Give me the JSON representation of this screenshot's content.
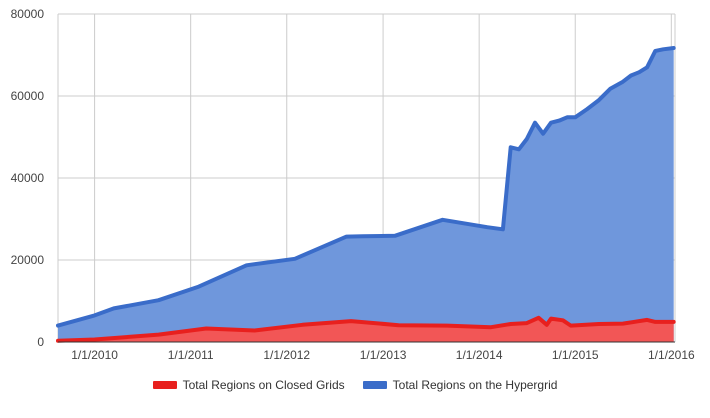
{
  "chart_data": {
    "type": "area",
    "x_ticks": [
      "1/1/2010",
      "1/1/2011",
      "1/1/2012",
      "1/1/2013",
      "1/1/2014",
      "1/1/2015",
      "1/1/2016"
    ],
    "y_ticks": [
      "0",
      "20000",
      "40000",
      "60000",
      "80000"
    ],
    "ylim": [
      0,
      80000
    ],
    "xlim": [
      "2009-08-15",
      "2016-01-15"
    ],
    "grid": true,
    "legend_position": "bottom",
    "series": [
      {
        "name": "Total Regions on the Hypergrid",
        "color": "#3a6cc9",
        "fill": "#6f97dc",
        "points": [
          {
            "x": "2009-08-15",
            "y": 4000
          },
          {
            "x": "2010-01-01",
            "y": 6500
          },
          {
            "x": "2010-03-15",
            "y": 8200
          },
          {
            "x": "2010-09-01",
            "y": 10200
          },
          {
            "x": "2011-02-01",
            "y": 13500
          },
          {
            "x": "2011-08-01",
            "y": 18700
          },
          {
            "x": "2012-02-01",
            "y": 20300
          },
          {
            "x": "2012-08-15",
            "y": 25700
          },
          {
            "x": "2012-10-15",
            "y": 25800
          },
          {
            "x": "2013-02-15",
            "y": 25900
          },
          {
            "x": "2013-08-15",
            "y": 29800
          },
          {
            "x": "2014-02-01",
            "y": 28000
          },
          {
            "x": "2014-04-01",
            "y": 27500
          },
          {
            "x": "2014-05-01",
            "y": 47500
          },
          {
            "x": "2014-06-01",
            "y": 47000
          },
          {
            "x": "2014-07-01",
            "y": 49500
          },
          {
            "x": "2014-08-01",
            "y": 53500
          },
          {
            "x": "2014-09-01",
            "y": 50800
          },
          {
            "x": "2014-10-01",
            "y": 53500
          },
          {
            "x": "2014-11-01",
            "y": 54000
          },
          {
            "x": "2014-12-01",
            "y": 54800
          },
          {
            "x": "2015-01-01",
            "y": 54800
          },
          {
            "x": "2015-02-15",
            "y": 56800
          },
          {
            "x": "2015-04-01",
            "y": 59000
          },
          {
            "x": "2015-05-15",
            "y": 61800
          },
          {
            "x": "2015-07-01",
            "y": 63500
          },
          {
            "x": "2015-08-01",
            "y": 65000
          },
          {
            "x": "2015-09-01",
            "y": 65800
          },
          {
            "x": "2015-10-01",
            "y": 67000
          },
          {
            "x": "2015-11-01",
            "y": 71000
          },
          {
            "x": "2015-12-01",
            "y": 71400
          },
          {
            "x": "2016-01-10",
            "y": 71700
          }
        ]
      },
      {
        "name": "Total Regions on Closed Grids",
        "color": "#e8201e",
        "fill": "#f25656",
        "points": [
          {
            "x": "2009-08-15",
            "y": 300
          },
          {
            "x": "2010-01-01",
            "y": 600
          },
          {
            "x": "2010-05-01",
            "y": 1200
          },
          {
            "x": "2010-09-01",
            "y": 1800
          },
          {
            "x": "2011-03-01",
            "y": 3300
          },
          {
            "x": "2011-09-01",
            "y": 2800
          },
          {
            "x": "2012-03-01",
            "y": 4200
          },
          {
            "x": "2012-09-01",
            "y": 5100
          },
          {
            "x": "2013-03-01",
            "y": 4100
          },
          {
            "x": "2013-09-01",
            "y": 4000
          },
          {
            "x": "2014-02-15",
            "y": 3600
          },
          {
            "x": "2014-05-01",
            "y": 4400
          },
          {
            "x": "2014-07-01",
            "y": 4600
          },
          {
            "x": "2014-08-15",
            "y": 5900
          },
          {
            "x": "2014-09-15",
            "y": 4200
          },
          {
            "x": "2014-10-01",
            "y": 5700
          },
          {
            "x": "2014-11-15",
            "y": 5300
          },
          {
            "x": "2014-12-15",
            "y": 4000
          },
          {
            "x": "2015-04-01",
            "y": 4400
          },
          {
            "x": "2015-07-01",
            "y": 4500
          },
          {
            "x": "2015-10-01",
            "y": 5400
          },
          {
            "x": "2015-11-01",
            "y": 4900
          },
          {
            "x": "2016-01-10",
            "y": 4900
          }
        ]
      }
    ]
  }
}
